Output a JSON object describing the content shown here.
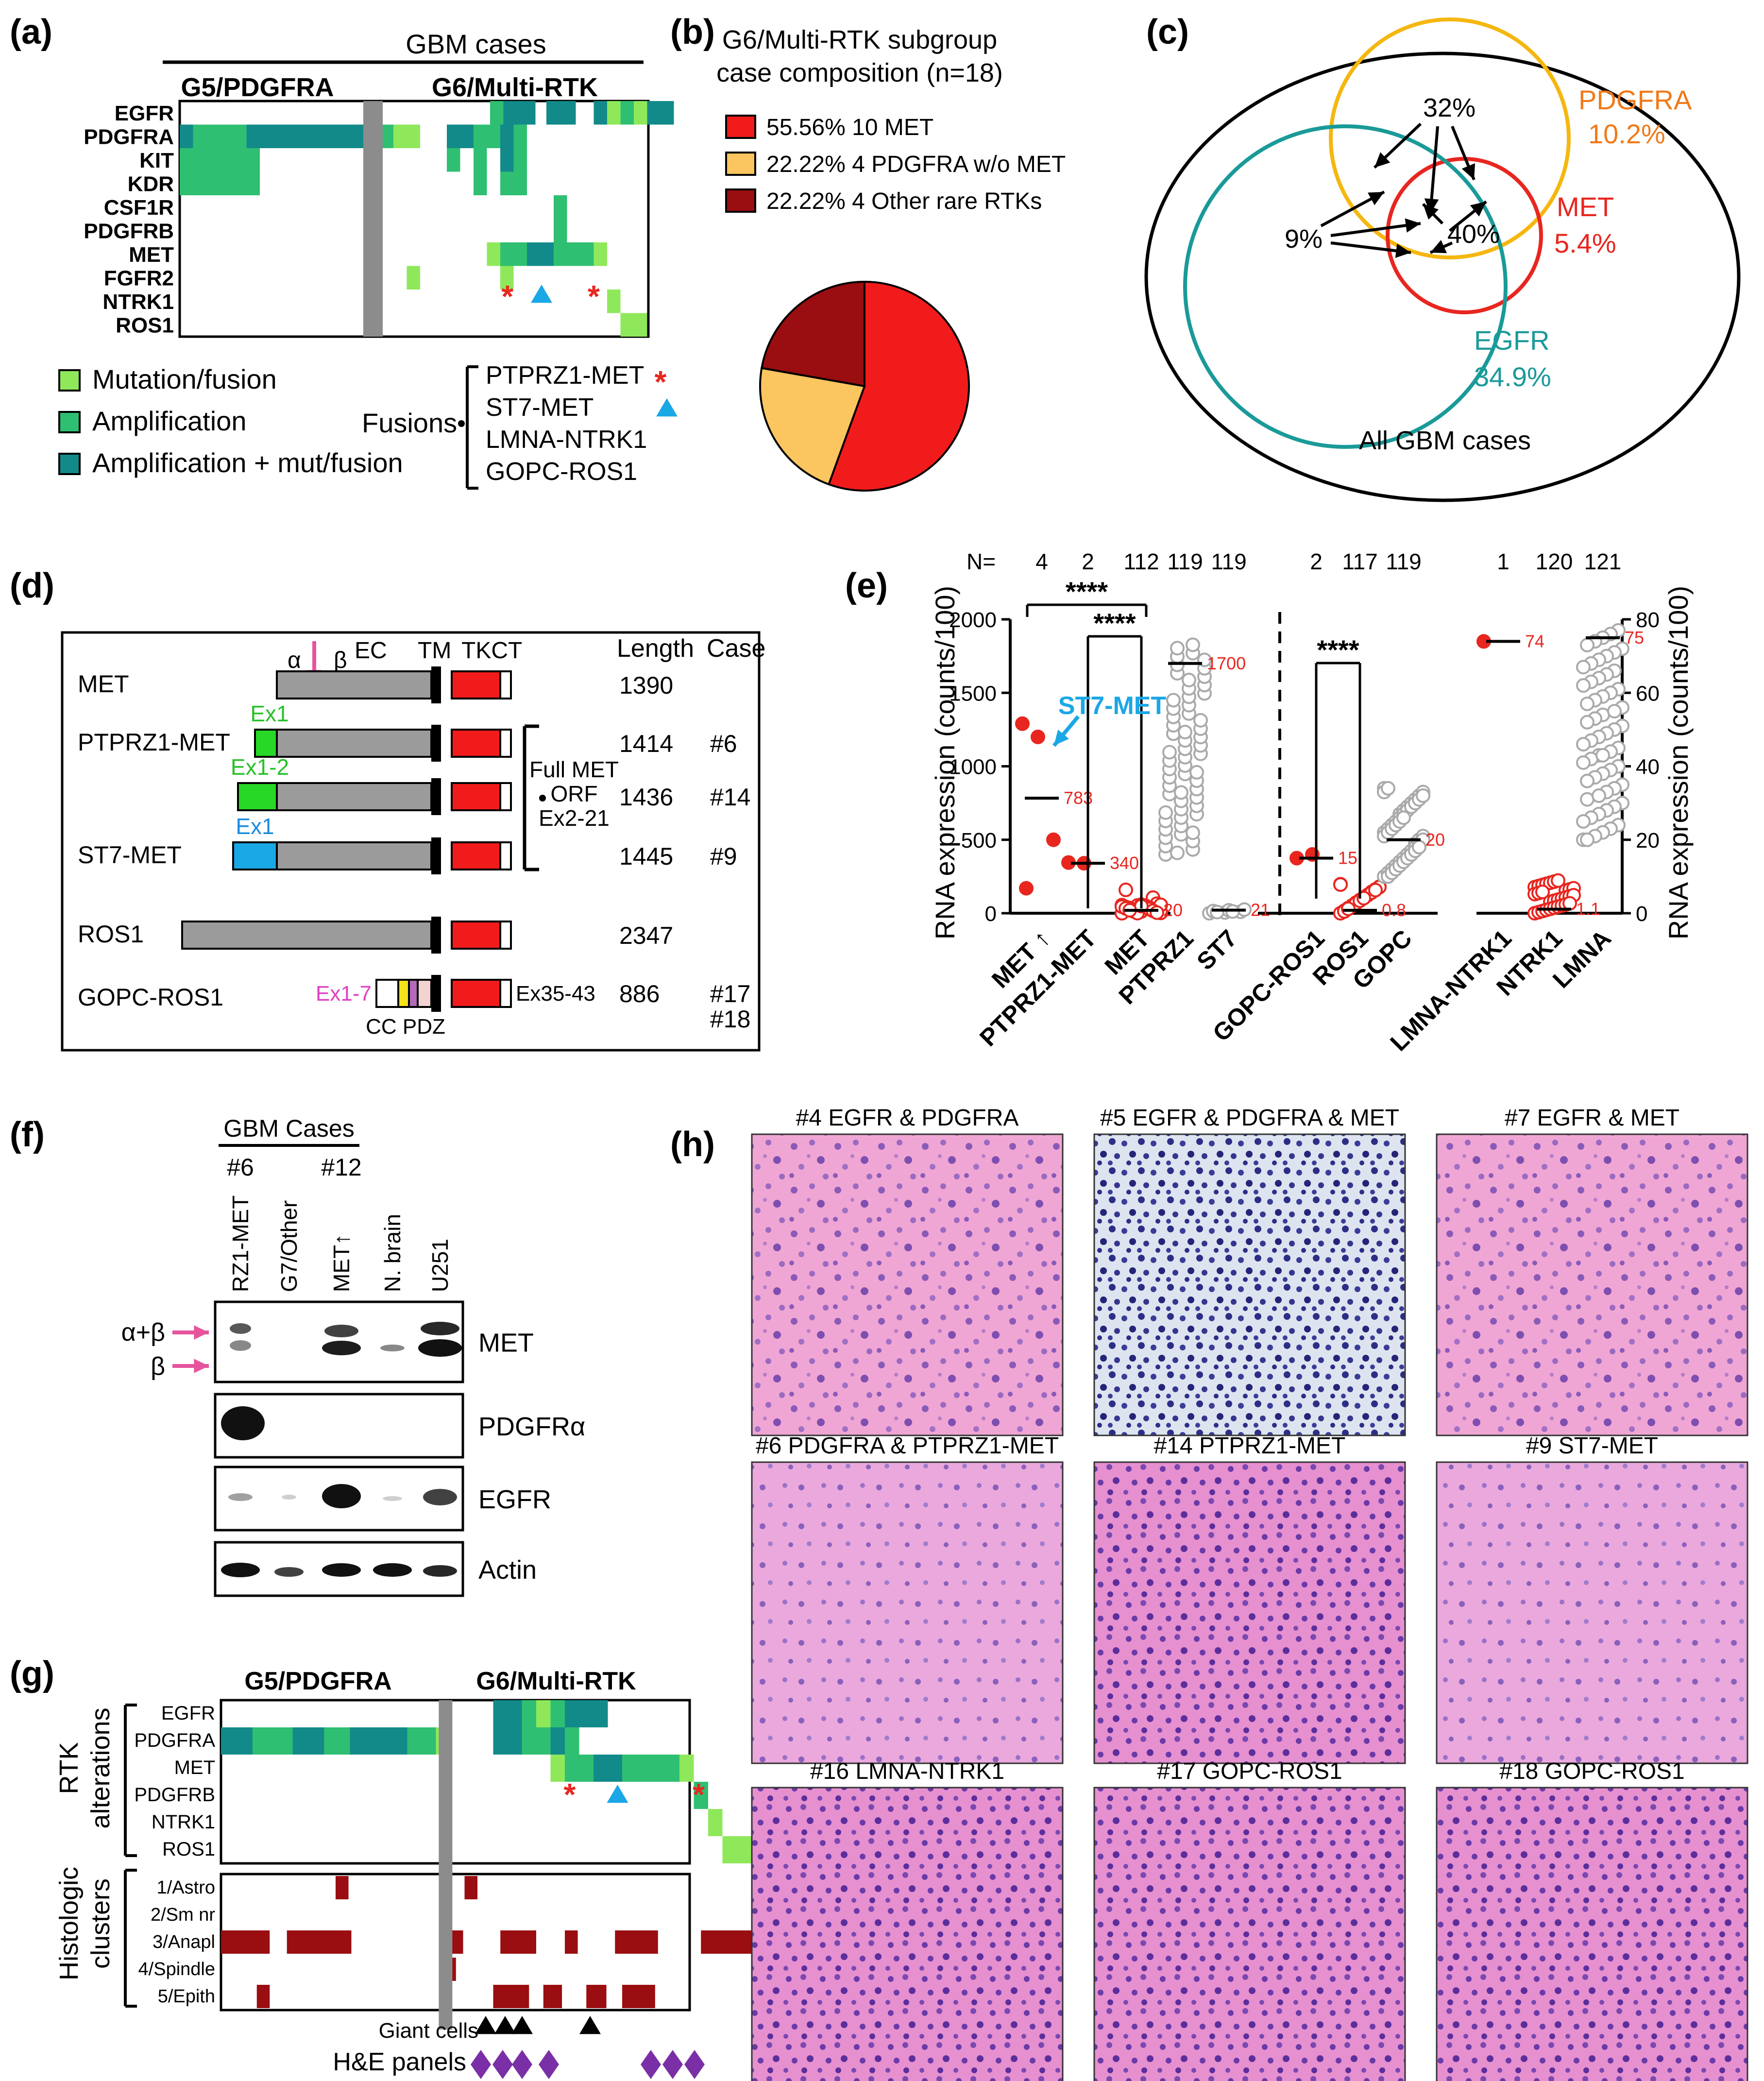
{
  "panel_labels": {
    "a": "(a)",
    "b": "(b)",
    "c": "(c)",
    "d": "(d)",
    "e": "(e)",
    "f": "(f)",
    "g": "(g)",
    "h": "(h)"
  },
  "panel_a": {
    "header": "GBM cases",
    "group1": "G5/PDGFRA",
    "group2": "G6/Multi-RTK",
    "genes": [
      "EGFR",
      "PDGFRA",
      "KIT",
      "KDR",
      "CSF1R",
      "PDGFRB",
      "MET",
      "FGFR2",
      "NTRK1",
      "ROS1"
    ],
    "legend": [
      "Mutation/fusion",
      "Amplification",
      "Amplification + mut/fusion"
    ],
    "fusions_label": "Fusions",
    "fusions": [
      "PTPRZ1-MET",
      "ST7-MET",
      "LMNA-NTRK1",
      "GOPC-ROS1"
    ],
    "star": "*",
    "colors": {
      "mutation": "#8fe85a",
      "amplification": "#2fbf72",
      "amp_mut": "#138a8a",
      "separator": "#8c8c8c",
      "star": "#e8261f",
      "triangle": "#1aa7e6"
    }
  },
  "panel_b": {
    "title_line1": "G6/Multi-RTK subgroup",
    "title_line2": "case composition (n=18)",
    "legend": [
      {
        "pct": "55.56%",
        "label": "10 MET",
        "color": "#f21b1b"
      },
      {
        "pct": "22.22%",
        "label": "4 PDGFRA w/o MET",
        "color": "#fbc55f"
      },
      {
        "pct": "22.22%",
        "label": "4 Other rare RTKs",
        "color": "#9a0d10"
      }
    ],
    "chart_data": {
      "type": "pie",
      "labels": [
        "10 MET",
        "4 PDGFRA w/o MET",
        "4 Other rare RTKs"
      ],
      "values": [
        55.56,
        22.22,
        22.22
      ]
    }
  },
  "panel_c": {
    "circles": [
      {
        "name": "PDGFRA",
        "pct": "10.2%",
        "color": "#f5b70f",
        "label_color": "#f07a1a"
      },
      {
        "name": "MET",
        "pct": "5.4%",
        "color": "#e8261f",
        "label_color": "#e8261f"
      },
      {
        "name": "EGFR",
        "pct": "34.9%",
        "color": "#1a9a98",
        "label_color": "#1a9a98"
      }
    ],
    "overlaps": [
      "32%",
      "9%",
      "40%"
    ],
    "outer_label": "All GBM cases"
  },
  "panel_d": {
    "headers": [
      "Length",
      "Case"
    ],
    "domains": [
      "α",
      "β",
      "EC",
      "TM",
      "TKCT"
    ],
    "rows": [
      {
        "name": "MET",
        "length": "1390",
        "case": ""
      },
      {
        "name": "PTPRZ1-MET",
        "length": "1414",
        "case": "#6",
        "exon": "Ex1"
      },
      {
        "name": "",
        "length": "1436",
        "case": "#14",
        "exon": "Ex1-2"
      },
      {
        "name": "ST7-MET",
        "length": "1445",
        "case": "#9",
        "exon": "Ex1"
      },
      {
        "name": "ROS1",
        "length": "2347",
        "case": ""
      },
      {
        "name": "GOPC-ROS1",
        "length": "886",
        "case": "#17",
        "case2": "#18",
        "exon": "Ex1-7",
        "exon2": "Ex35-43"
      }
    ],
    "bracket_label": [
      "Full MET",
      "ORF",
      "Ex2-21"
    ],
    "gopc_domains": [
      "CC",
      "PDZ"
    ]
  },
  "panel_e": {
    "n_label": "N=",
    "y_label": "RNA expression (counts/100)",
    "y_ticks_left": [
      "0",
      "500",
      "1000",
      "1500",
      "2000"
    ],
    "y_ticks_right": [
      "0",
      "20",
      "40",
      "60",
      "80"
    ],
    "significance": "****",
    "callout": "ST7-MET",
    "chart_data": {
      "type": "scatter",
      "groups": [
        {
          "label": "MET ↑",
          "n": "4",
          "median": "783",
          "axis": "left"
        },
        {
          "label": "PTPRZ1-MET",
          "n": "2",
          "median": "340",
          "axis": "left"
        },
        {
          "label": "MET",
          "n": "112",
          "median": "20",
          "axis": "left"
        },
        {
          "label": "PTPRZ1",
          "n": "119",
          "median": "1700",
          "axis": "left"
        },
        {
          "label": "ST7",
          "n": "119",
          "median": "21",
          "axis": "left"
        },
        {
          "label": "GOPC-ROS1",
          "n": "2",
          "median": "15",
          "axis": "right"
        },
        {
          "label": "ROS1",
          "n": "117",
          "median": "0.8",
          "axis": "right"
        },
        {
          "label": "GOPC",
          "n": "119",
          "median": "20",
          "axis": "right"
        },
        {
          "label": "LMNA-NTRK1",
          "n": "1",
          "median": "74",
          "axis": "right"
        },
        {
          "label": "NTRK1",
          "n": "120",
          "median": "1.1",
          "axis": "right"
        },
        {
          "label": "LMNA",
          "n": "121",
          "median": "75",
          "axis": "right"
        }
      ],
      "ylim_left": [
        0,
        2000
      ],
      "ylim_right": [
        0,
        80
      ]
    }
  },
  "panel_f": {
    "header": "GBM Cases",
    "case_ids": [
      "#6",
      "#12"
    ],
    "lanes": [
      "RZ1-MET",
      "G7/Other",
      "MET↑",
      "N. brain",
      "U251"
    ],
    "blots": [
      "MET",
      "PDGFRα",
      "EGFR",
      "Actin"
    ],
    "arrows": [
      "α+β",
      "β"
    ]
  },
  "panel_g": {
    "group1": "G5/PDGFRA",
    "group2": "G6/Multi-RTK",
    "rtk_label": [
      "RTK",
      "alterations"
    ],
    "rtk_rows": [
      "EGFR",
      "PDGFRA",
      "MET",
      "PDGFRB",
      "NTRK1",
      "ROS1"
    ],
    "hist_label": [
      "Histologic",
      "clusters"
    ],
    "hist_rows": [
      "1/Astro",
      "2/Sm nr",
      "3/Anapl",
      "4/Spindle",
      "5/Epith"
    ],
    "giant_cells": "Giant cells",
    "he_panels": "H&E panels",
    "colors": {
      "cluster": "#9a0d10",
      "diamond": "#7b2fa6"
    }
  },
  "panel_h": {
    "titles": [
      "#4 EGFR & PDGFRA",
      "#5 EGFR & PDGFRA & MET",
      "#7 EGFR & MET",
      "#6 PDGFRA & PTPRZ1-MET",
      "#14 PTPRZ1-MET",
      "#9 ST7-MET",
      "#16 LMNA-NTRK1",
      "#17 GOPC-ROS1",
      "#18 GOPC-ROS1"
    ]
  }
}
